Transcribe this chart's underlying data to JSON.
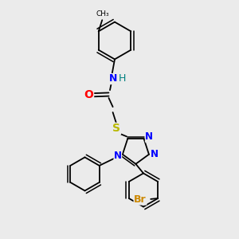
{
  "bg_color": "#ebebeb",
  "bond_color": "#000000",
  "bond_width": 1.3,
  "atom_colors": {
    "N": "#0000ff",
    "O": "#ff0000",
    "S": "#b8b800",
    "Br": "#cc8800",
    "H": "#008080",
    "C": "#000000"
  },
  "font_size": 9,
  "fig_width": 3.0,
  "fig_height": 3.0,
  "dpi": 100
}
